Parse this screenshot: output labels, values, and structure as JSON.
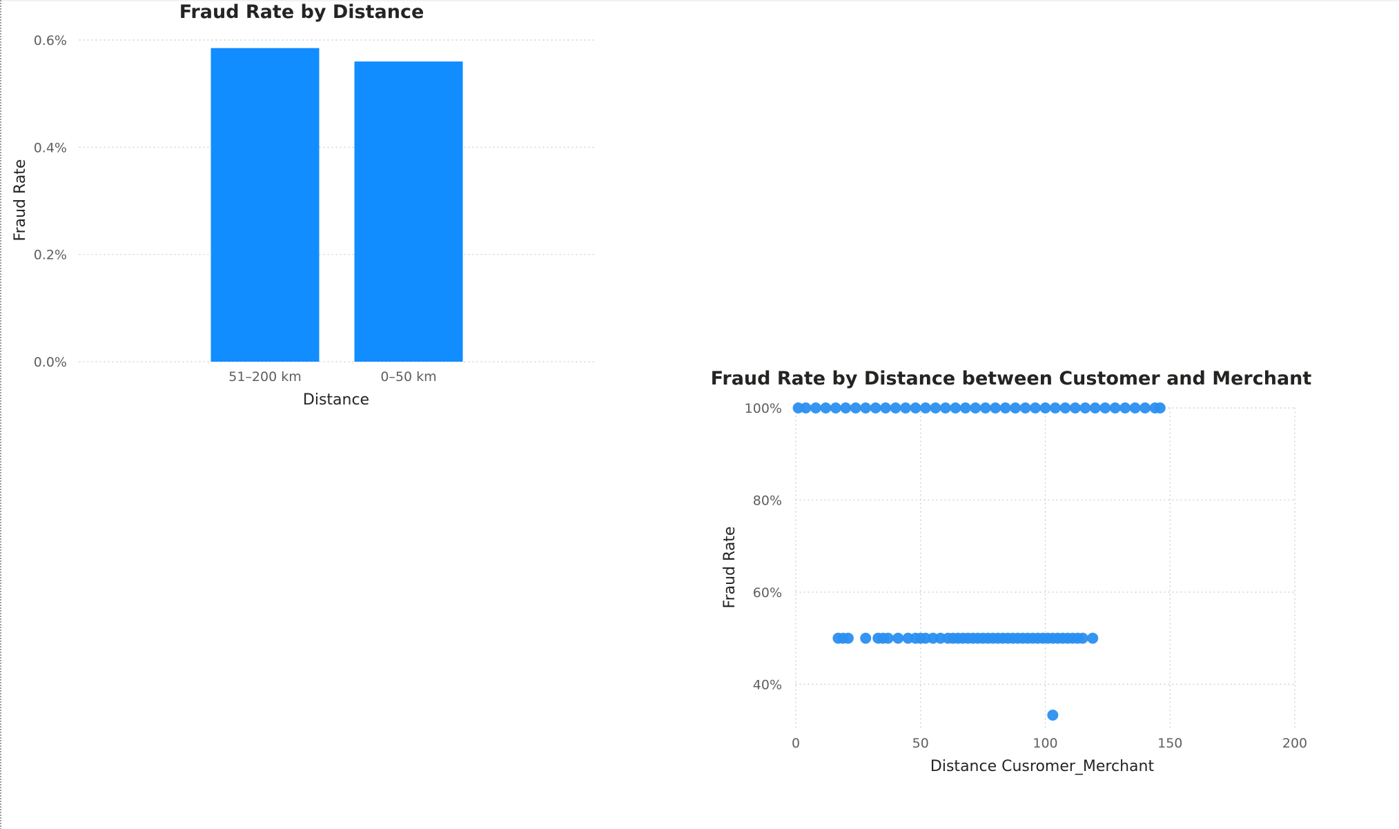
{
  "colors": {
    "accent": "#118DFF",
    "dot": "#2a8ff0",
    "tick": "#605e5c",
    "text": "#252423"
  },
  "chart_data": [
    {
      "type": "bar",
      "title": "Fraud Rate by Distance",
      "xlabel": "Distance",
      "ylabel": "Fraud Rate",
      "categories": [
        "51–200 km",
        "0–50 km"
      ],
      "values": [
        0.585,
        0.56
      ],
      "ylim": [
        0,
        0.6
      ],
      "yticks": [
        0.0,
        0.2,
        0.4,
        0.6
      ],
      "ytick_labels": [
        "0.0%",
        "0.2%",
        "0.4%",
        "0.6%"
      ],
      "grid": true
    },
    {
      "type": "scatter",
      "title": "Fraud Rate by Distance between Customer and Merchant",
      "xlabel": "Distance Cusromer_Merchant",
      "ylabel": "Fraud Rate",
      "xlim": [
        0,
        200
      ],
      "ylim": [
        30,
        100
      ],
      "xticks": [
        0,
        50,
        100,
        150,
        200
      ],
      "xtick_labels": [
        "0",
        "50",
        "100",
        "150",
        "200"
      ],
      "yticks": [
        40,
        60,
        80,
        100
      ],
      "ytick_labels": [
        "40%",
        "60%",
        "80%",
        "100%"
      ],
      "grid": true,
      "points": [
        [
          1,
          100
        ],
        [
          4,
          100
        ],
        [
          8,
          100
        ],
        [
          12,
          100
        ],
        [
          16,
          100
        ],
        [
          20,
          100
        ],
        [
          24,
          100
        ],
        [
          28,
          100
        ],
        [
          32,
          100
        ],
        [
          36,
          100
        ],
        [
          40,
          100
        ],
        [
          44,
          100
        ],
        [
          48,
          100
        ],
        [
          52,
          100
        ],
        [
          56,
          100
        ],
        [
          60,
          100
        ],
        [
          64,
          100
        ],
        [
          68,
          100
        ],
        [
          72,
          100
        ],
        [
          76,
          100
        ],
        [
          80,
          100
        ],
        [
          84,
          100
        ],
        [
          88,
          100
        ],
        [
          92,
          100
        ],
        [
          96,
          100
        ],
        [
          100,
          100
        ],
        [
          104,
          100
        ],
        [
          108,
          100
        ],
        [
          112,
          100
        ],
        [
          116,
          100
        ],
        [
          120,
          100
        ],
        [
          124,
          100
        ],
        [
          128,
          100
        ],
        [
          132,
          100
        ],
        [
          136,
          100
        ],
        [
          140,
          100
        ],
        [
          144,
          100
        ],
        [
          146,
          100
        ],
        [
          17,
          50
        ],
        [
          19,
          50
        ],
        [
          21,
          50
        ],
        [
          28,
          50
        ],
        [
          33,
          50
        ],
        [
          35,
          50
        ],
        [
          37,
          50
        ],
        [
          41,
          50
        ],
        [
          45,
          50
        ],
        [
          48,
          50
        ],
        [
          50,
          50
        ],
        [
          52,
          50
        ],
        [
          55,
          50
        ],
        [
          58,
          50
        ],
        [
          61,
          50
        ],
        [
          63,
          50
        ],
        [
          65,
          50
        ],
        [
          67,
          50
        ],
        [
          69,
          50
        ],
        [
          71,
          50
        ],
        [
          73,
          50
        ],
        [
          75,
          50
        ],
        [
          77,
          50
        ],
        [
          79,
          50
        ],
        [
          81,
          50
        ],
        [
          83,
          50
        ],
        [
          85,
          50
        ],
        [
          87,
          50
        ],
        [
          89,
          50
        ],
        [
          91,
          50
        ],
        [
          93,
          50
        ],
        [
          95,
          50
        ],
        [
          97,
          50
        ],
        [
          99,
          50
        ],
        [
          101,
          50
        ],
        [
          103,
          50
        ],
        [
          105,
          50
        ],
        [
          107,
          50
        ],
        [
          109,
          50
        ],
        [
          111,
          50
        ],
        [
          113,
          50
        ],
        [
          115,
          50
        ],
        [
          119,
          50
        ],
        [
          103,
          33.3
        ]
      ]
    }
  ]
}
